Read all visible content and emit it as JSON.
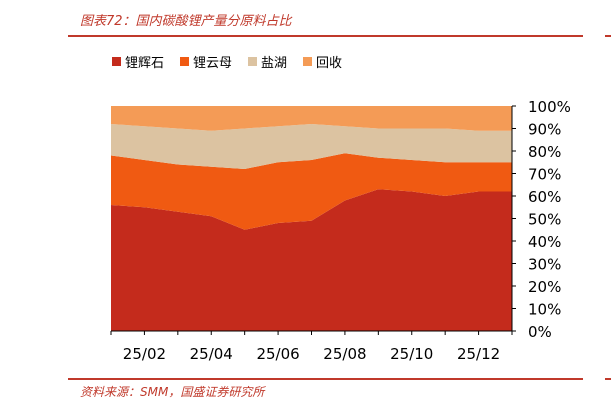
{
  "header": {
    "title": "图表72：国内碳酸锂产量分原料占比"
  },
  "footer": {
    "source": "资料来源：SMM，国盛证券研究所"
  },
  "colors": {
    "accent": "#c0392b"
  },
  "chart_data": {
    "type": "area",
    "stacked": true,
    "normalized_percent": true,
    "x": [
      "25/01",
      "25/02",
      "25/03",
      "25/04",
      "25/05",
      "25/06",
      "25/07",
      "25/08",
      "25/09",
      "25/10",
      "25/11",
      "25/12",
      "26/01"
    ],
    "x_tick_labels": [
      "25/02",
      "25/04",
      "25/06",
      "25/08",
      "25/10",
      "25/12"
    ],
    "y_tick_labels": [
      "100%",
      "90%",
      "80%",
      "70%",
      "60%",
      "50%",
      "40%",
      "30%",
      "20%",
      "10%",
      "0%"
    ],
    "ylim": [
      0,
      100
    ],
    "legend_position": "top",
    "series": [
      {
        "name": "锂辉石",
        "color": "#c42b1c",
        "values": [
          56,
          55,
          53,
          51,
          45,
          48,
          49,
          58,
          63,
          62,
          60,
          62,
          62
        ]
      },
      {
        "name": "锂云母",
        "color": "#f05a12",
        "values": [
          22,
          21,
          21,
          22,
          27,
          27,
          27,
          21,
          14,
          14,
          15,
          13,
          13
        ]
      },
      {
        "name": "盐湖",
        "color": "#dcc3a1",
        "values": [
          14,
          15,
          16,
          16,
          18,
          16,
          16,
          12,
          13,
          14,
          15,
          14,
          14
        ]
      },
      {
        "name": "回收",
        "color": "#f49b56",
        "values": [
          8,
          9,
          10,
          11,
          10,
          9,
          8,
          9,
          10,
          10,
          10,
          11,
          11
        ]
      }
    ]
  }
}
